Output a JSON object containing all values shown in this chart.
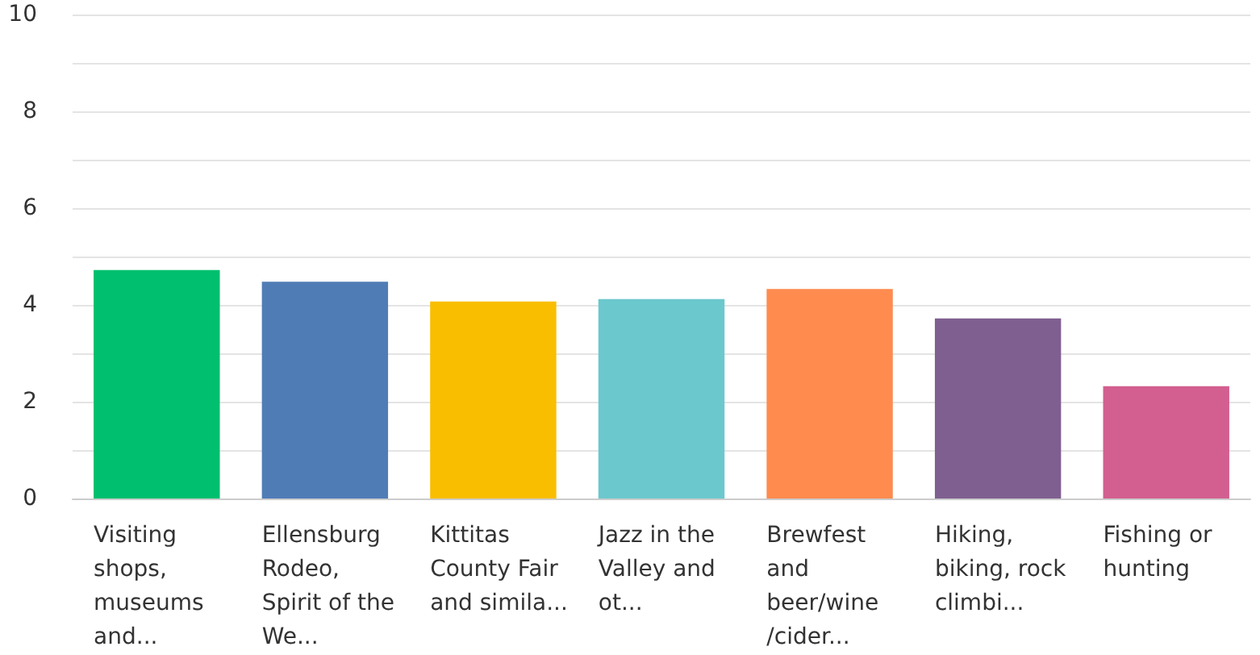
{
  "chart_data": {
    "type": "bar",
    "categories": [
      "Visiting shops, museums and...",
      "Ellensburg Rodeo, Spirit of the We...",
      "Kittitas County Fair and simila...",
      "Jazz in the Valley and ot...",
      "Brewfest and beer/wine /cider...",
      "Hiking, biking, rock climbi...",
      "Fishing or hunting"
    ],
    "values": [
      4.72,
      4.48,
      4.07,
      4.12,
      4.33,
      3.72,
      2.32
    ],
    "colors": [
      "#00bf6f",
      "#507cb6",
      "#f9be00",
      "#6bc8cd",
      "#ff8b4f",
      "#7f5f90",
      "#d25f90"
    ],
    "ylim": [
      0,
      10
    ],
    "yticks": [
      0,
      {
        "value": 1,
        "label": null
      },
      2,
      {
        "value": 3,
        "label": null
      },
      4,
      {
        "value": 5,
        "label": null
      },
      6,
      {
        "value": 7,
        "label": null
      },
      8,
      {
        "value": 9,
        "label": null
      },
      10
    ],
    "grid": true
  }
}
